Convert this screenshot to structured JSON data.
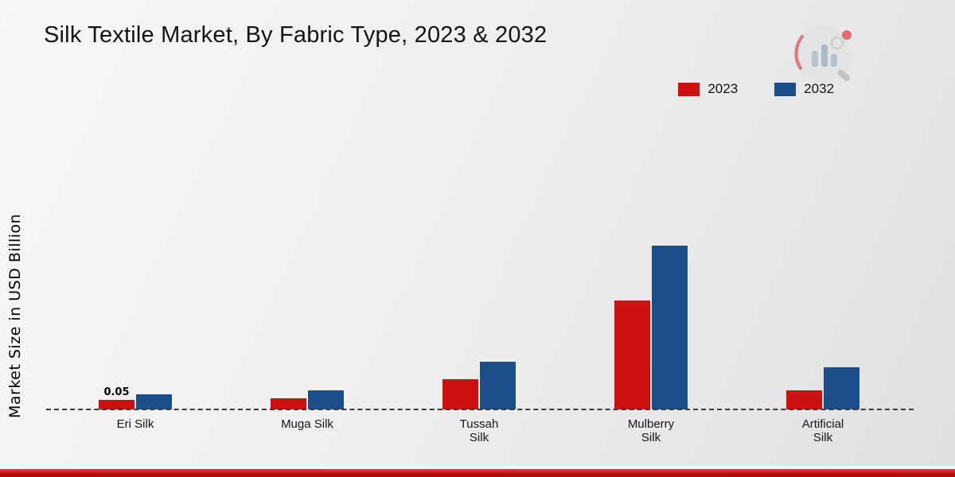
{
  "title": "Silk Textile Market, By Fabric Type, 2023 & 2032",
  "ylabel": "Market Size in USD Billion",
  "legend": [
    {
      "label": "2023",
      "color": "#cc1111"
    },
    {
      "label": "2032",
      "color": "#1c4e89"
    }
  ],
  "colors": {
    "series_2023": "#cc1111",
    "series_2032": "#1c4e89",
    "footer_stripe": "#c01212"
  },
  "chart_data": {
    "type": "bar",
    "title": "Silk Textile Market, By Fabric Type, 2023 & 2032",
    "xlabel": "",
    "ylabel": "Market Size in USD Billion",
    "categories": [
      "Eri Silk",
      "Muga Silk",
      "Tussah Silk",
      "Mulberry Silk",
      "Artificial Silk"
    ],
    "category_lines": [
      [
        "Eri Silk"
      ],
      [
        "Muga Silk"
      ],
      [
        "Tussah",
        "Silk"
      ],
      [
        "Mulberry",
        "Silk"
      ],
      [
        "Artificial",
        "Silk"
      ]
    ],
    "series": [
      {
        "name": "2023",
        "color": "#cc1111",
        "values": [
          0.05,
          0.06,
          0.16,
          0.57,
          0.1
        ]
      },
      {
        "name": "2032",
        "color": "#1c4e89",
        "values": [
          0.08,
          0.1,
          0.25,
          0.86,
          0.22
        ]
      }
    ],
    "bar_labels": [
      {
        "category_index": 0,
        "series_index": 0,
        "text": "0.05"
      }
    ],
    "ylim": [
      0,
      1.0
    ],
    "grid": false,
    "baseline_style": "dashed",
    "legend_position": "top-right"
  }
}
